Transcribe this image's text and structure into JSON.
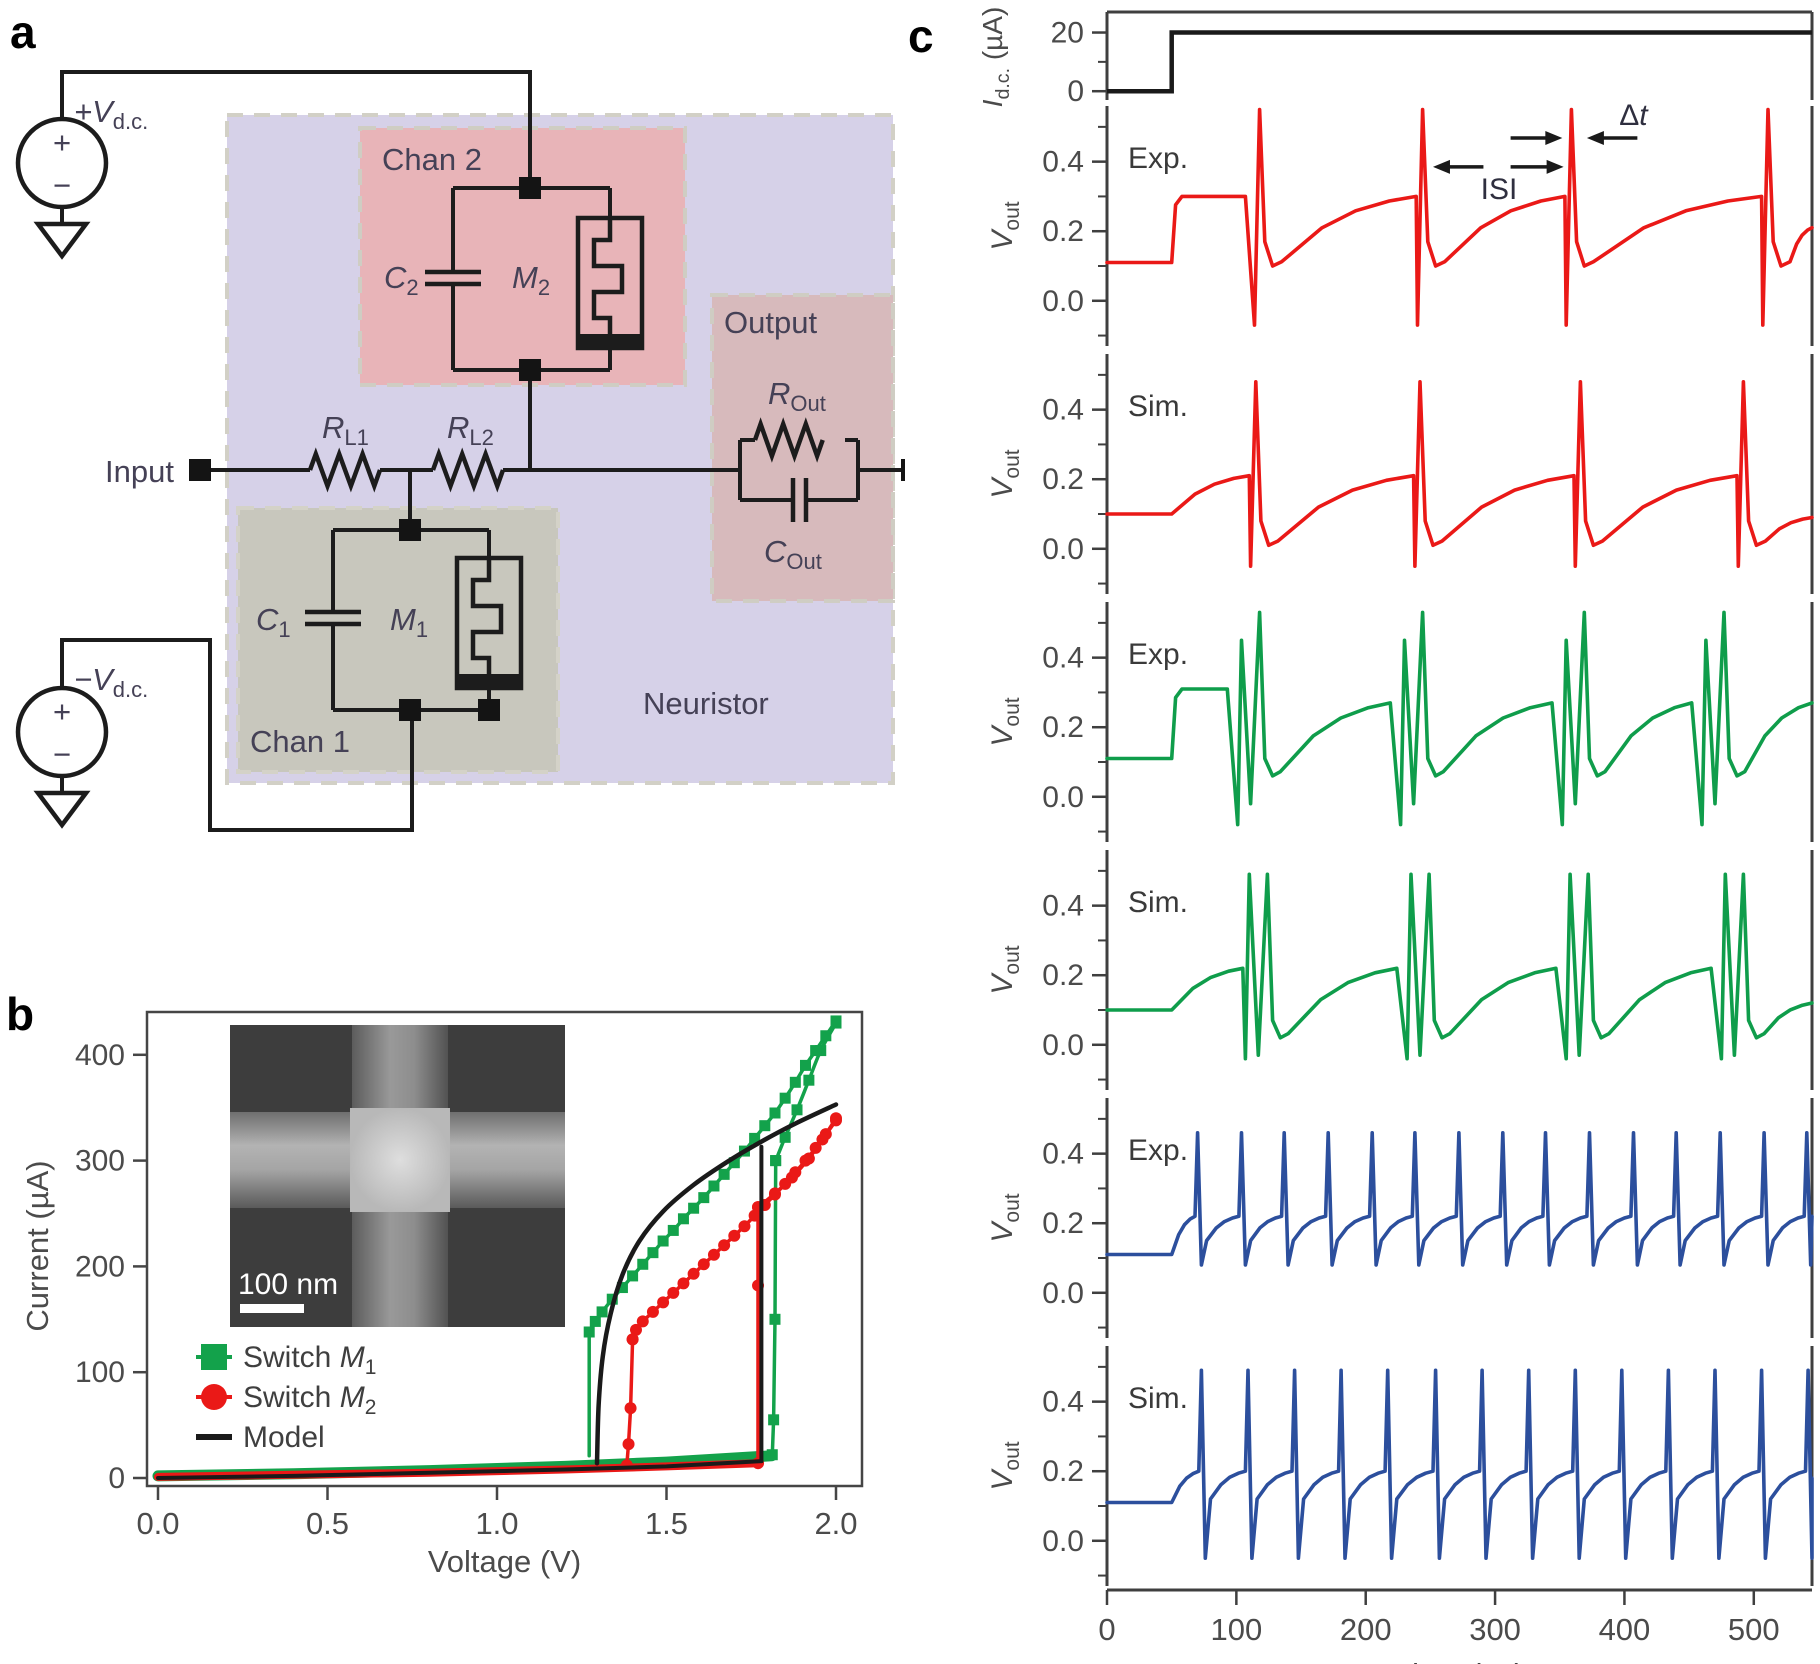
{
  "figure": {
    "panel_letters": {
      "a": "a",
      "b": "b",
      "c": "c"
    }
  },
  "panel_a": {
    "input_label": "Input",
    "chan1_label": "Chan 1",
    "chan2_label": "Chan 2",
    "output_label": "Output",
    "neuristor_label": "Neuristor",
    "plus": "+",
    "minus": "−",
    "vdc_pos": {
      "base": "+V",
      "sub": "d.c."
    },
    "vdc_neg": {
      "base": "−V",
      "sub": "d.c."
    },
    "c1": {
      "base": "C",
      "sub": "1"
    },
    "c2": {
      "base": "C",
      "sub": "2"
    },
    "m1": {
      "base": "M",
      "sub": "1"
    },
    "m2": {
      "base": "M",
      "sub": "2"
    },
    "rl1": {
      "base": "R",
      "sub": "L1"
    },
    "rl2": {
      "base": "R",
      "sub": "L2"
    },
    "rout": {
      "base": "R",
      "sub": "Out"
    },
    "cout": {
      "base": "C",
      "sub": "Out"
    },
    "colors": {
      "neuristor": "#d6d1e8",
      "chan2": "#e8b4b8",
      "chan1": "#c8c7bd",
      "output": "#d7babc"
    }
  },
  "chart_data": [
    {
      "id": "panel-b",
      "type": "scatter",
      "xlabel": "Voltage (V)",
      "ylabel": "Current (µA)",
      "xlim": [
        0,
        2.05
      ],
      "ylim": [
        -8,
        450
      ],
      "xticks": [
        "0.0",
        "0.5",
        "1.0",
        "1.5",
        "2.0"
      ],
      "yticks": [
        "0",
        "100",
        "200",
        "300",
        "400"
      ],
      "legend": [
        {
          "pre": "Switch ",
          "it": "M",
          "sub": "1",
          "marker": "square",
          "color": "#13a24b"
        },
        {
          "pre": "Switch ",
          "it": "M",
          "sub": "2",
          "marker": "circle",
          "color": "#ea1917"
        },
        {
          "pre": "Model",
          "it": "",
          "sub": "",
          "marker": "line",
          "color": "#1a1a1a"
        }
      ],
      "inset": {
        "scale_label": "100 nm"
      },
      "series": [
        {
          "name": "m1-off",
          "color": "#13a24b",
          "width": 11,
          "marker": null,
          "smooth": false,
          "points": [
            [
              0,
              2
            ],
            [
              0.4,
              4
            ],
            [
              0.8,
              7
            ],
            [
              1.2,
              11
            ],
            [
              1.5,
              15
            ],
            [
              1.81,
              21
            ]
          ]
        },
        {
          "name": "m2-off",
          "color": "#ea1917",
          "width": 8,
          "marker": null,
          "smooth": false,
          "points": [
            [
              0,
              1
            ],
            [
              0.4,
              3
            ],
            [
              0.8,
              5
            ],
            [
              1.2,
              8
            ],
            [
              1.5,
              11
            ],
            [
              1.77,
              14
            ]
          ]
        },
        {
          "name": "m1-jump-up",
          "color": "#13a24b",
          "width": 3.5,
          "marker": "square",
          "smooth": false,
          "points": [
            [
              1.812,
              22
            ],
            [
              1.816,
              55
            ],
            [
              1.82,
              150
            ],
            [
              1.822,
              300
            ]
          ]
        },
        {
          "name": "m1-on-forward",
          "color": "#13a24b",
          "width": 3.5,
          "marker": "square",
          "smooth": true,
          "points": [
            [
              1.822,
              300
            ],
            [
              1.85,
              322
            ],
            [
              1.885,
              348
            ],
            [
              1.92,
              376
            ],
            [
              1.955,
              404
            ],
            [
              2.0,
              430
            ]
          ]
        },
        {
          "name": "m1-on",
          "color": "#13a24b",
          "width": 3.5,
          "marker": "square",
          "smooth": true,
          "points": [
            [
              2.0,
              432
            ],
            [
              1.97,
              418
            ],
            [
              1.94,
              404
            ],
            [
              1.91,
              390
            ],
            [
              1.88,
              374
            ],
            [
              1.85,
              359
            ],
            [
              1.82,
              345
            ],
            [
              1.79,
              333
            ],
            [
              1.76,
              321
            ],
            [
              1.73,
              309
            ],
            [
              1.7,
              298
            ],
            [
              1.67,
              287
            ],
            [
              1.64,
              276
            ],
            [
              1.61,
              265
            ],
            [
              1.58,
              255
            ],
            [
              1.55,
              245
            ],
            [
              1.52,
              234
            ],
            [
              1.49,
              224
            ],
            [
              1.46,
              213
            ],
            [
              1.43,
              202
            ],
            [
              1.4,
              191
            ],
            [
              1.37,
              180
            ],
            [
              1.34,
              169
            ],
            [
              1.31,
              157
            ],
            [
              1.29,
              148
            ],
            [
              1.272,
              138
            ]
          ]
        },
        {
          "name": "m1-jump-down",
          "color": "#13a24b",
          "width": 3.5,
          "marker": null,
          "smooth": false,
          "points": [
            [
              1.272,
              138
            ],
            [
              1.272,
              21
            ]
          ]
        },
        {
          "name": "m2-jump-up",
          "color": "#ea1917",
          "width": 3.5,
          "marker": "circle",
          "smooth": false,
          "points": [
            [
              1.77,
              14
            ],
            [
              1.77,
              182
            ],
            [
              1.77,
              256
            ]
          ]
        },
        {
          "name": "m2-on-forward",
          "color": "#ea1917",
          "width": 3.5,
          "marker": "circle",
          "smooth": true,
          "points": [
            [
              1.77,
              256
            ],
            [
              1.82,
              269
            ],
            [
              1.87,
              284
            ],
            [
              1.92,
              302
            ],
            [
              1.96,
              320
            ],
            [
              2.0,
              338
            ]
          ]
        },
        {
          "name": "m2-on",
          "color": "#ea1917",
          "width": 3.5,
          "marker": "circle",
          "smooth": true,
          "points": [
            [
              2.0,
              340
            ],
            [
              1.97,
              325
            ],
            [
              1.94,
              312
            ],
            [
              1.91,
              300
            ],
            [
              1.88,
              289
            ],
            [
              1.85,
              278
            ],
            [
              1.82,
              268
            ],
            [
              1.79,
              258
            ],
            [
              1.76,
              248
            ],
            [
              1.73,
              238
            ],
            [
              1.7,
              229
            ],
            [
              1.67,
              220
            ],
            [
              1.64,
              211
            ],
            [
              1.61,
              202
            ],
            [
              1.58,
              193
            ],
            [
              1.55,
              184
            ],
            [
              1.52,
              175
            ],
            [
              1.49,
              166
            ],
            [
              1.46,
              157
            ],
            [
              1.43,
              148
            ],
            [
              1.41,
              140
            ],
            [
              1.4,
              131
            ]
          ]
        },
        {
          "name": "m2-jump-down",
          "color": "#ea1917",
          "width": 3.5,
          "marker": "circle",
          "smooth": false,
          "points": [
            [
              1.4,
              131
            ],
            [
              1.394,
              66
            ],
            [
              1.388,
              32
            ],
            [
              1.383,
              12
            ]
          ]
        },
        {
          "name": "model-off",
          "color": "#1a1a1a",
          "width": 4,
          "marker": null,
          "smooth": false,
          "points": [
            [
              0,
              0
            ],
            [
              0.4,
              2
            ],
            [
              0.8,
              5
            ],
            [
              1.2,
              8
            ],
            [
              1.5,
              11
            ],
            [
              1.78,
              16
            ]
          ]
        },
        {
          "name": "model-jump",
          "color": "#1a1a1a",
          "width": 4,
          "marker": null,
          "smooth": false,
          "points": [
            [
              1.78,
              16
            ],
            [
              1.78,
              313
            ]
          ]
        },
        {
          "name": "model-on",
          "color": "#1a1a1a",
          "width": 4.5,
          "marker": null,
          "smooth": true,
          "points": [
            [
              1.295,
              14
            ],
            [
              1.3,
              70
            ],
            [
              1.312,
              115
            ],
            [
              1.335,
              155
            ],
            [
              1.37,
              192
            ],
            [
              1.42,
              224
            ],
            [
              1.49,
              252
            ],
            [
              1.58,
              277
            ],
            [
              1.68,
              299
            ],
            [
              1.78,
              318
            ],
            [
              1.88,
              335
            ],
            [
              2.0,
              353
            ]
          ]
        }
      ]
    },
    {
      "id": "panel-c",
      "type": "line",
      "xlabel": "Time (µs)",
      "xlim": [
        0,
        545
      ],
      "xticks": [
        0,
        100,
        200,
        300,
        400,
        500
      ],
      "idc": {
        "ylabel_base": "I",
        "ylabel_sub": "d.c.",
        "ylabel_unit": " (µA)",
        "ytick_labels": [
          "20",
          "0"
        ],
        "yticks": [
          20,
          0
        ],
        "minor": [
          10
        ],
        "ylim": [
          -3,
          27
        ],
        "step_t": 50,
        "low": 0,
        "high": 20,
        "color": "#1a1a1a"
      },
      "vout_ylabel": {
        "base": "V",
        "sub": "out"
      },
      "vout_major_ticks": [
        0.4,
        0.2,
        0.0
      ],
      "vout_tick_labels": [
        "0.4",
        "0.2",
        "0.0"
      ],
      "vout_minor_ticks": [
        0.5,
        0.3,
        0.1,
        -0.1
      ],
      "vout_ylim": [
        -0.13,
        0.56
      ],
      "panels": [
        {
          "label": "Exp.",
          "color": "#ea1917",
          "baseline": 0.11,
          "onset": 50,
          "plateau": 0.3,
          "ramp_peak": 0.3,
          "spike_peak": 0.55,
          "spike_min": -0.07,
          "settle": 0.1,
          "end_value": 0.21,
          "mode": "single",
          "drop_first": true,
          "spikes": [
            118,
            244,
            359,
            511
          ]
        },
        {
          "label": "Sim.",
          "color": "#ea1917",
          "baseline": 0.1,
          "onset": 50,
          "ramp_peak": 0.21,
          "spike_peak": 0.48,
          "spike_min": -0.05,
          "settle": 0.01,
          "end_value": 0.09,
          "mode": "single",
          "drop_first": true,
          "spikes": [
            115,
            242,
            366,
            492
          ]
        },
        {
          "label": "Exp.",
          "color": "#0f9d4b",
          "baseline": 0.11,
          "onset": 50,
          "plateau": 0.31,
          "ramp_peak": 0.27,
          "spike_peak": 0.45,
          "peak2": 0.53,
          "spike_min": -0.08,
          "mid_min": -0.02,
          "settle": 0.06,
          "end_value": 0.27,
          "mode": "burst",
          "gap": 14,
          "drop_first": true,
          "spikes": [
            104,
            230,
            355,
            463
          ]
        },
        {
          "label": "Sim.",
          "color": "#0f9d4b",
          "baseline": 0.1,
          "onset": 50,
          "ramp_peak": 0.22,
          "spike_peak": 0.49,
          "peak2": 0.49,
          "spike_min": -0.04,
          "mid_min": -0.03,
          "settle": 0.02,
          "end_value": 0.12,
          "mode": "burst",
          "gap": 14,
          "drop_first": true,
          "spikes": [
            110,
            235,
            358,
            478
          ]
        },
        {
          "label": "Exp.",
          "color": "#2c4f9d",
          "baseline": 0.11,
          "onset": 50,
          "ramp_peak": 0.22,
          "spike_peak": 0.46,
          "spike_min": 0.08,
          "settle": 0.15,
          "end_value": 0.22,
          "mode": "single",
          "drop_first": false,
          "spikes": [
            70,
            104,
            137,
            171,
            205,
            238,
            272,
            306,
            339,
            373,
            407,
            440,
            474,
            508,
            541
          ]
        },
        {
          "label": "Sim.",
          "color": "#2c4f9d",
          "baseline": 0.11,
          "onset": 50,
          "ramp_peak": 0.2,
          "spike_peak": 0.49,
          "spike_min": -0.05,
          "settle": 0.12,
          "end_value": 0.18,
          "mode": "single",
          "drop_first": false,
          "spikes": [
            73,
            109,
            145,
            181,
            217,
            254,
            290,
            326,
            362,
            398,
            434,
            470,
            506,
            542
          ]
        }
      ],
      "annotations": {
        "isi": {
          "label": "ISI",
          "y": 0.385,
          "left_tail_t": 291,
          "left_head_t": 252,
          "right_tail_t": 312,
          "right_head_t": 353,
          "label_t": 303,
          "label_v": 0.292
        },
        "dt": {
          "label": "Δt",
          "y": 0.468,
          "right_tail_t": 312,
          "right_head_t": 352,
          "left_tail_t": 410,
          "left_head_t": 371,
          "label_t": 396,
          "label_v": 0.505
        }
      }
    }
  ]
}
